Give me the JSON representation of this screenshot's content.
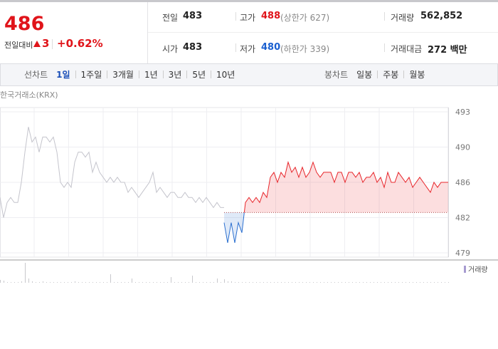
{
  "header": {
    "price": "486",
    "change_label": "전일대비",
    "change": "3",
    "change_pct": "+0.62%",
    "stats": [
      {
        "label": "전일",
        "value": "483"
      },
      {
        "label": "고가",
        "value": "488",
        "note": "(상한가 627)"
      },
      {
        "label": "거래량",
        "value": "562,852"
      },
      {
        "label": "시가",
        "value": "483"
      },
      {
        "label": "저가",
        "value": "480",
        "note": "(하한가 339)"
      },
      {
        "label": "거래대금",
        "value": "272 백만"
      }
    ]
  },
  "tabs": {
    "line_label": "선차트",
    "line_periods": [
      "1일",
      "1주일",
      "3개월",
      "1년",
      "3년",
      "5년",
      "10년"
    ],
    "candle_label": "봉차트",
    "candle_periods": [
      "일봉",
      "주봉",
      "월봉"
    ]
  },
  "chart_data": {
    "type": "line",
    "source": "한국거래소(KRX)",
    "ylim": [
      479,
      493
    ],
    "yticks": [
      479,
      {
        "value": 482.5,
        "label": "482"
      },
      486,
      {
        "value": 489.5,
        "label": "490"
      },
      493
    ],
    "baseline": 483,
    "color_up": "#e8262b",
    "color_down": "#2a6fd0",
    "series": [
      {
        "color": "#c4c4cc",
        "values": [
          484.5,
          482.5,
          484,
          484.5,
          484,
          484,
          486,
          489,
          491.5,
          490,
          490.5,
          489,
          490.5,
          490.5,
          490,
          490.5,
          489,
          486,
          485.5,
          486,
          485.5,
          488,
          489,
          489,
          488.5,
          489,
          487,
          488,
          487,
          486.5,
          486,
          486.5,
          486,
          486.5,
          486,
          486,
          485,
          485.5,
          485,
          484.5,
          485,
          485.5,
          486,
          487,
          485,
          485.5,
          485,
          484.5,
          485,
          485,
          484.5,
          484.5,
          485,
          484.5,
          484.5,
          484,
          484.5,
          484,
          484.5,
          484,
          483.5,
          484,
          483.5,
          483.5,
          null,
          null,
          null,
          null,
          null,
          null,
          null,
          null,
          null,
          null,
          null,
          null,
          null,
          null,
          null,
          null,
          null,
          null,
          null,
          null,
          null,
          null,
          null,
          null,
          null,
          null,
          null,
          null,
          null,
          null,
          null,
          null,
          null,
          null,
          null,
          null,
          null,
          null,
          null,
          null,
          null,
          null,
          null,
          null,
          null,
          null,
          null,
          null,
          null,
          null,
          null,
          null,
          null,
          null,
          null,
          null,
          null,
          null,
          null,
          null,
          null,
          null,
          null
        ]
      },
      {
        "color": "split",
        "values": [
          null,
          null,
          null,
          null,
          null,
          null,
          null,
          null,
          null,
          null,
          null,
          null,
          null,
          null,
          null,
          null,
          null,
          null,
          null,
          null,
          null,
          null,
          null,
          null,
          null,
          null,
          null,
          null,
          null,
          null,
          null,
          null,
          null,
          null,
          null,
          null,
          null,
          null,
          null,
          null,
          null,
          null,
          null,
          null,
          null,
          null,
          null,
          null,
          null,
          null,
          null,
          null,
          null,
          null,
          null,
          null,
          null,
          null,
          null,
          null,
          null,
          null,
          null,
          482,
          480,
          482,
          480,
          482,
          481,
          484,
          484.5,
          484,
          484.5,
          484,
          485,
          484.5,
          486.5,
          487,
          486,
          487,
          486.5,
          488,
          487,
          487.5,
          486.5,
          487.5,
          486.5,
          487,
          488,
          487,
          486.5,
          487,
          487,
          487,
          486,
          487,
          487,
          486,
          487,
          487,
          486.5,
          487,
          486,
          486.5,
          486.5,
          487,
          486,
          486.5,
          485.5,
          487,
          486,
          486,
          487,
          486.5,
          486,
          486.5,
          485.5,
          486,
          486.5,
          486,
          485.5,
          485,
          486,
          485.5,
          486,
          486,
          486
        ]
      }
    ],
    "volume_label": "거래량",
    "volume_color": "#a79bd0",
    "volume": [
      4,
      3,
      1,
      1,
      1,
      1,
      2,
      28,
      6,
      2,
      1,
      1,
      2,
      1,
      1,
      1,
      1,
      1,
      1,
      1,
      1,
      2,
      1,
      1,
      1,
      1,
      1,
      1,
      1,
      1,
      1,
      12,
      1,
      1,
      1,
      1,
      1,
      6,
      1,
      1,
      1,
      1,
      1,
      1,
      1,
      1,
      1,
      1,
      8,
      1,
      1,
      1,
      1,
      1,
      10,
      1,
      1,
      1,
      1,
      1,
      1,
      6,
      1,
      5,
      2,
      2,
      1,
      1,
      1,
      1,
      1,
      1,
      1,
      1,
      1,
      1,
      1,
      1,
      1,
      1,
      1,
      1,
      1,
      1,
      1,
      1,
      1,
      1,
      1,
      1,
      1,
      1,
      1,
      1,
      1,
      1,
      1,
      1,
      1,
      1,
      1,
      1,
      1,
      1,
      1,
      1,
      1,
      1,
      1,
      1,
      1,
      1,
      1,
      1,
      1,
      1,
      1,
      1,
      1,
      1,
      1,
      1,
      1,
      1,
      1,
      1,
      1
    ]
  }
}
